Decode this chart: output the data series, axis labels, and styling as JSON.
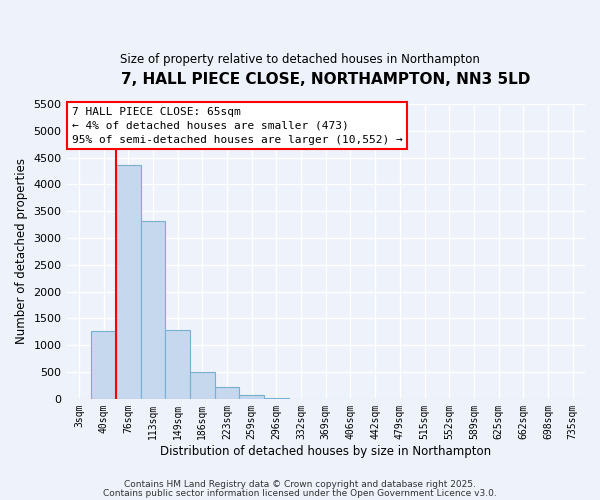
{
  "title": "7, HALL PIECE CLOSE, NORTHAMPTON, NN3 5LD",
  "subtitle": "Size of property relative to detached houses in Northampton",
  "xlabel": "Distribution of detached houses by size in Northampton",
  "ylabel": "Number of detached properties",
  "bar_labels": [
    "3sqm",
    "40sqm",
    "76sqm",
    "113sqm",
    "149sqm",
    "186sqm",
    "223sqm",
    "259sqm",
    "296sqm",
    "332sqm",
    "369sqm",
    "406sqm",
    "442sqm",
    "479sqm",
    "515sqm",
    "552sqm",
    "589sqm",
    "625sqm",
    "662sqm",
    "698sqm",
    "735sqm"
  ],
  "bar_values": [
    0,
    1270,
    4370,
    3310,
    1290,
    500,
    230,
    80,
    20,
    5,
    2,
    1,
    0,
    0,
    0,
    0,
    0,
    0,
    0,
    0,
    0
  ],
  "bar_color": "#c5d8ee",
  "bar_edge_color": "#7aafd4",
  "vline_color": "red",
  "ylim": [
    0,
    5500
  ],
  "yticks": [
    0,
    500,
    1000,
    1500,
    2000,
    2500,
    3000,
    3500,
    4000,
    4500,
    5000,
    5500
  ],
  "annotation_line1": "7 HALL PIECE CLOSE: 65sqm",
  "annotation_line2": "← 4% of detached houses are smaller (473)",
  "annotation_line3": "95% of semi-detached houses are larger (10,552) →",
  "bg_color": "#eef2fa",
  "grid_color": "#ffffff",
  "footer1": "Contains HM Land Registry data © Crown copyright and database right 2025.",
  "footer2": "Contains public sector information licensed under the Open Government Licence v3.0."
}
